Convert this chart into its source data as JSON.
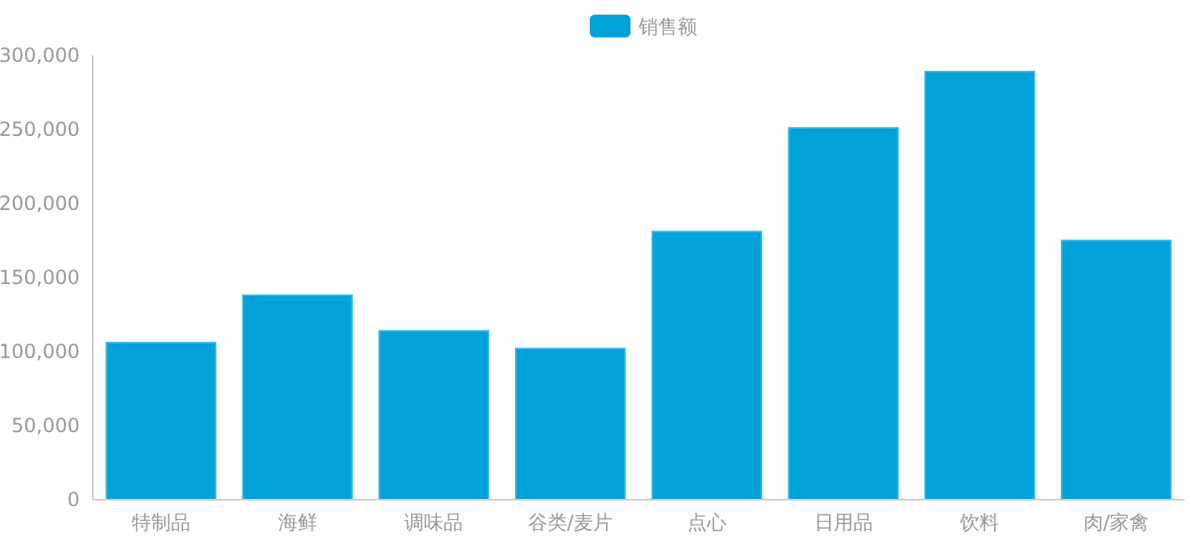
{
  "chart_data": {
    "type": "bar",
    "categories": [
      "特制品",
      "海鲜",
      "调味品",
      "谷类/麦片",
      "点心",
      "日用品",
      "饮料",
      "肉/家禽"
    ],
    "series": [
      {
        "name": "销售额",
        "color": "#00a2d9",
        "values": [
          106000,
          138000,
          114000,
          102000,
          181000,
          251000,
          289000,
          175000
        ]
      }
    ],
    "ylim": [
      0,
      300000
    ],
    "yticks": [
      {
        "value": 0,
        "label": "0"
      },
      {
        "value": 50000,
        "label": "50,000"
      },
      {
        "value": 100000,
        "label": "100,000"
      },
      {
        "value": 150000,
        "label": "150,000"
      },
      {
        "value": 200000,
        "label": "200,000"
      },
      {
        "value": 250000,
        "label": "250,000"
      },
      {
        "value": 300000,
        "label": "300,000"
      }
    ],
    "grid": false,
    "legend": "top"
  }
}
